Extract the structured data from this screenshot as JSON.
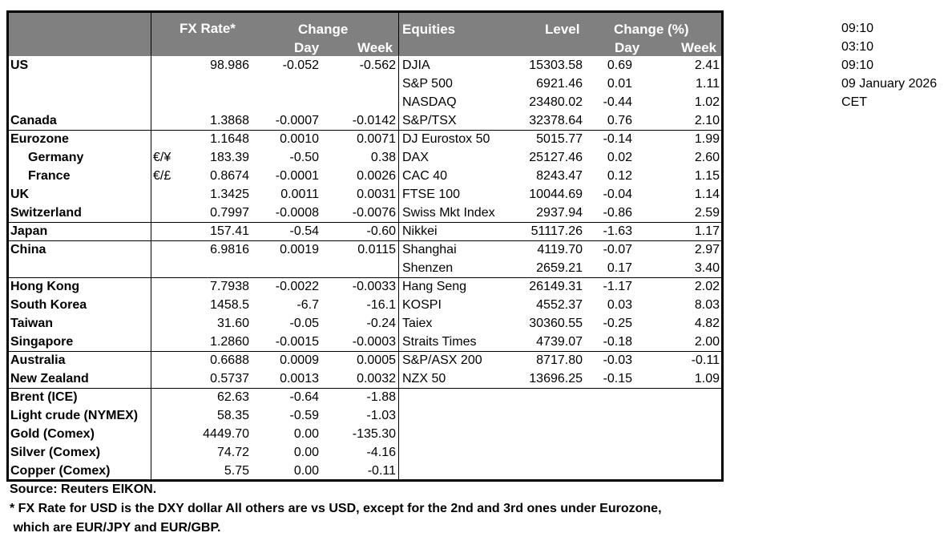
{
  "header": {
    "fx_rate": "FX Rate*",
    "change": "Change",
    "day": "Day",
    "week": "Week",
    "equities": "Equities",
    "level": "Level",
    "change_pct": "Change (%)",
    "eq_day": "Day",
    "eq_week": "Week"
  },
  "rows": [
    {
      "name": "US",
      "pair": "",
      "rate": "98.986",
      "day": "-0.052",
      "week": "-0.562",
      "index": "DJIA",
      "level": "15303.58",
      "idx_day": "0.69",
      "idx_week": "2.41"
    },
    {
      "name": "",
      "pair": "",
      "rate": "",
      "day": "",
      "week": "",
      "index": "S&P 500",
      "level": "6921.46",
      "idx_day": "0.01",
      "idx_week": "1.11"
    },
    {
      "name": "",
      "pair": "",
      "rate": "",
      "day": "",
      "week": "",
      "index": "NASDAQ",
      "level": "23480.02",
      "idx_day": "-0.44",
      "idx_week": "1.02"
    },
    {
      "name": "Canada",
      "pair": "",
      "rate": "1.3868",
      "day": "-0.0007",
      "week": "-0.0142",
      "index": "S&P/TSX",
      "level": "32378.64",
      "idx_day": "0.76",
      "idx_week": "2.10"
    },
    {
      "name": "Eurozone",
      "pair": "",
      "rate": "1.1648",
      "day": "0.0010",
      "week": "0.0071",
      "index": "DJ Eurostox 50",
      "level": "5015.77",
      "idx_day": "-0.14",
      "idx_week": "1.99"
    },
    {
      "name": "Germany",
      "indent": true,
      "pair": "€/¥",
      "rate": "183.39",
      "day": "-0.50",
      "week": "0.38",
      "index": "DAX",
      "level": "25127.46",
      "idx_day": "0.02",
      "idx_week": "2.60"
    },
    {
      "name": "France",
      "indent": true,
      "pair": "€/£",
      "rate": "0.8674",
      "day": "-0.0001",
      "week": "0.0026",
      "index": "CAC 40",
      "level": "8243.47",
      "idx_day": "0.12",
      "idx_week": "1.15"
    },
    {
      "name": "UK",
      "pair": "",
      "rate": "1.3425",
      "day": "0.0011",
      "week": "0.0031",
      "index": "FTSE 100",
      "level": "10044.69",
      "idx_day": "-0.04",
      "idx_week": "1.14"
    },
    {
      "name": "Switzerland",
      "pair": "",
      "rate": "0.7997",
      "day": "-0.0008",
      "week": "-0.0076",
      "index": "Swiss Mkt Index",
      "level": "2937.94",
      "idx_day": "-0.86",
      "idx_week": "2.59"
    },
    {
      "name": "Japan",
      "pair": "",
      "rate": "157.41",
      "day": "-0.54",
      "week": "-0.60",
      "index": "Nikkei",
      "level": "51117.26",
      "idx_day": "-1.63",
      "idx_week": "1.17"
    },
    {
      "name": "China",
      "pair": "",
      "rate": "6.9816",
      "day": "0.0019",
      "week": "0.0115",
      "index": "Shanghai",
      "level": "4119.70",
      "idx_day": "-0.07",
      "idx_week": "2.97"
    },
    {
      "name": "",
      "pair": "",
      "rate": "",
      "day": "",
      "week": "",
      "index": "Shenzen",
      "level": "2659.21",
      "idx_day": "0.17",
      "idx_week": "3.40"
    },
    {
      "name": "Hong Kong",
      "pair": "",
      "rate": "7.7938",
      "day": "-0.0022",
      "week": "-0.0033",
      "index": "Hang Seng",
      "level": "26149.31",
      "idx_day": "-1.17",
      "idx_week": "2.02"
    },
    {
      "name": "South Korea",
      "pair": "",
      "rate": "1458.5",
      "day": "-6.7",
      "week": "-16.1",
      "index": "KOSPI",
      "level": "4552.37",
      "idx_day": "0.03",
      "idx_week": "8.03"
    },
    {
      "name": "Taiwan",
      "pair": "",
      "rate": "31.60",
      "day": "-0.05",
      "week": "-0.24",
      "index": "Taiex",
      "level": "30360.55",
      "idx_day": "-0.25",
      "idx_week": "4.82"
    },
    {
      "name": "Singapore",
      "pair": "",
      "rate": "1.2860",
      "day": "-0.0015",
      "week": "-0.0003",
      "index": "Straits Times",
      "level": "4739.07",
      "idx_day": "-0.18",
      "idx_week": "2.00"
    },
    {
      "name": "Australia",
      "pair": "",
      "rate": "0.6688",
      "day": "0.0009",
      "week": "0.0005",
      "index": "S&P/ASX  200",
      "level": "8717.80",
      "idx_day": "-0.03",
      "idx_week": "-0.11"
    },
    {
      "name": "New Zealand",
      "pair": "",
      "rate": "0.5737",
      "day": "0.0013",
      "week": "0.0032",
      "index": "NZX 50",
      "level": "13696.25",
      "idx_day": "-0.15",
      "idx_week": "1.09"
    },
    {
      "name": "Brent (ICE)",
      "pair": "",
      "rate": "62.63",
      "day": "-0.64",
      "week": "-1.88",
      "index": "",
      "level": "",
      "idx_day": "",
      "idx_week": ""
    },
    {
      "name": "Light crude (NYMEX)",
      "pair": "",
      "rate": "58.35",
      "day": "-0.59",
      "week": "-1.03",
      "index": "",
      "level": "",
      "idx_day": "",
      "idx_week": ""
    },
    {
      "name": "Gold (Comex)",
      "pair": "",
      "rate": "4449.70",
      "day": "0.00",
      "week": "-135.30",
      "index": "",
      "level": "",
      "idx_day": "",
      "idx_week": ""
    },
    {
      "name": "Silver (Comex)",
      "pair": "",
      "rate": "74.72",
      "day": "0.00",
      "week": "-4.16",
      "index": "",
      "level": "",
      "idx_day": "",
      "idx_week": ""
    },
    {
      "name": "Copper (Comex)",
      "pair": "",
      "rate": "5.75",
      "day": "0.00",
      "week": "-0.11",
      "index": "",
      "level": "",
      "idx_day": "",
      "idx_week": ""
    }
  ],
  "side_info": [
    "09:10",
    "03:10",
    "09:10",
    "09 January 2026",
    "CET"
  ],
  "footer": {
    "source": "Source:  Reuters EIKON.",
    "note_line1": "* FX Rate for USD is the DXY dollar  All others are vs USD, except for the 2nd and 3rd ones under Eurozone,",
    "note_line2": " which are EUR/JPY and EUR/GBP."
  },
  "colors": {
    "header_bg": "#808080",
    "header_text": "#ffffff"
  }
}
